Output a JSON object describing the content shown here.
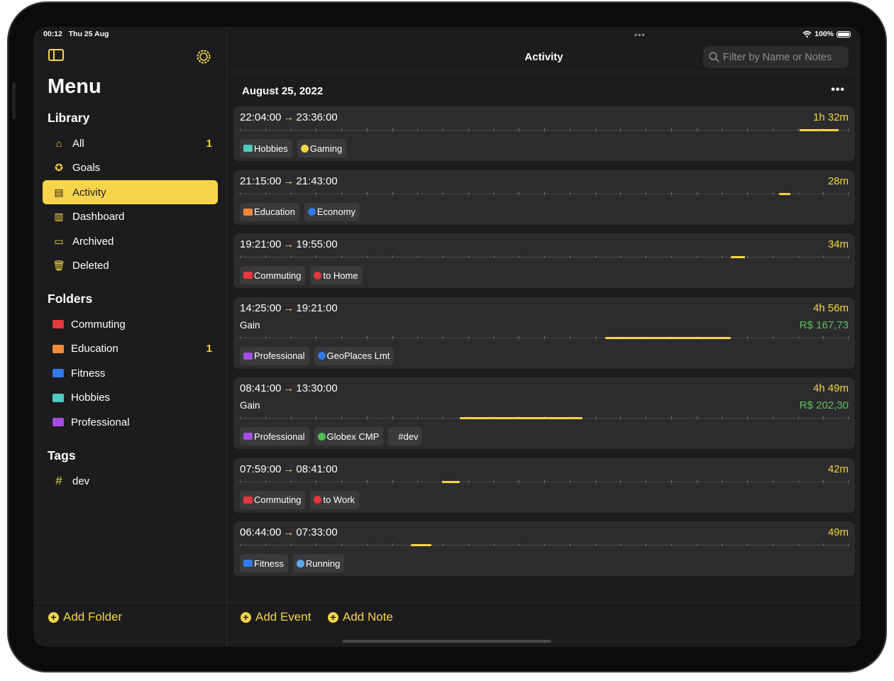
{
  "status": {
    "time": "00:12",
    "date": "Thu 25 Aug",
    "battery": "100%"
  },
  "sidebar": {
    "title": "Menu",
    "library_heading": "Library",
    "library": [
      {
        "label": "All",
        "icon": "house-icon",
        "count": "1"
      },
      {
        "label": "Goals",
        "icon": "checkmark-seal-icon"
      },
      {
        "label": "Activity",
        "icon": "document-icon",
        "selected": true
      },
      {
        "label": "Dashboard",
        "icon": "bar-chart-icon"
      },
      {
        "label": "Archived",
        "icon": "archive-box-icon"
      },
      {
        "label": "Deleted",
        "icon": "trash-icon"
      }
    ],
    "folders_heading": "Folders",
    "folders": [
      {
        "label": "Commuting",
        "color": "#e5383b"
      },
      {
        "label": "Education",
        "color": "#f08a3c",
        "count": "1"
      },
      {
        "label": "Fitness",
        "color": "#2f7be8"
      },
      {
        "label": "Hobbies",
        "color": "#52c9c0"
      },
      {
        "label": "Professional",
        "color": "#a54ee0"
      }
    ],
    "tags_heading": "Tags",
    "tags": [
      {
        "label": "dev",
        "icon": "#"
      }
    ],
    "add_folder": "Add Folder"
  },
  "main": {
    "title": "Activity",
    "search_placeholder": "Filter by Name or Notes",
    "date": "August 25, 2022",
    "add_event": "Add Event",
    "add_note": "Add Note",
    "entries": [
      {
        "start": "22:04:00",
        "end": "23:36:00",
        "duration": "1h 32m",
        "tags": [
          {
            "type": "folder",
            "label": "Hobbies",
            "color": "#52c9c0"
          },
          {
            "type": "project",
            "label": "Gaming",
            "color": "#f5d547"
          }
        ]
      },
      {
        "start": "21:15:00",
        "end": "21:43:00",
        "duration": "28m",
        "tags": [
          {
            "type": "folder",
            "label": "Education",
            "color": "#f08a3c"
          },
          {
            "type": "project",
            "label": "Economy",
            "color": "#2f7be8"
          }
        ]
      },
      {
        "start": "19:21:00",
        "end": "19:55:00",
        "duration": "34m",
        "tags": [
          {
            "type": "folder",
            "label": "Commuting",
            "color": "#e5383b"
          },
          {
            "type": "project",
            "label": "to Home",
            "color": "#e5383b"
          }
        ]
      },
      {
        "start": "14:25:00",
        "end": "19:21:00",
        "duration": "4h 56m",
        "gain_label": "Gain",
        "gain": "R$ 167,73",
        "tags": [
          {
            "type": "folder",
            "label": "Professional",
            "color": "#a54ee0"
          },
          {
            "type": "project",
            "label": "GeoPlaces Lmt",
            "color": "#2f7be8"
          }
        ]
      },
      {
        "start": "08:41:00",
        "end": "13:30:00",
        "duration": "4h 49m",
        "gain_label": "Gain",
        "gain": "R$ 202,30",
        "tags": [
          {
            "type": "folder",
            "label": "Professional",
            "color": "#a54ee0"
          },
          {
            "type": "project",
            "label": "Globex CMP",
            "color": "#4cc24f"
          },
          {
            "type": "tag",
            "label": "#dev"
          }
        ]
      },
      {
        "start": "07:59:00",
        "end": "08:41:00",
        "duration": "42m",
        "tags": [
          {
            "type": "folder",
            "label": "Commuting",
            "color": "#e5383b"
          },
          {
            "type": "project",
            "label": "to Work",
            "color": "#e5383b"
          }
        ]
      },
      {
        "start": "06:44:00",
        "end": "07:33:00",
        "duration": "49m",
        "tags": [
          {
            "type": "folder",
            "label": "Fitness",
            "color": "#2f7be8"
          },
          {
            "type": "project",
            "label": "Running",
            "color": "#5aa9f0"
          }
        ]
      }
    ]
  },
  "colors": {
    "accent": "#f5d547",
    "gain": "#5fc15f",
    "background": "#1c1c1e",
    "card": "#2c2c2e"
  }
}
